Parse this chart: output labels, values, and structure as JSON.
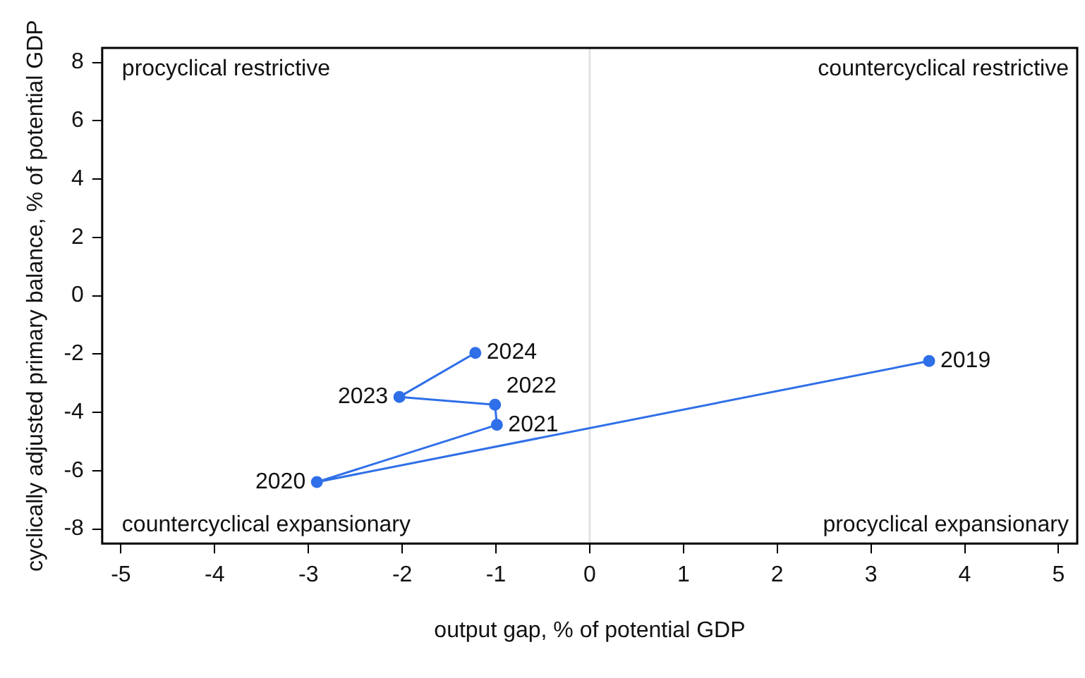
{
  "chart_data": {
    "type": "line",
    "xlabel": "output gap, % of potential GDP",
    "ylabel": "cyclically adjusted primary balance, % of potential GDP",
    "x": [
      3.62,
      -2.91,
      -0.99,
      -1.01,
      -2.03,
      -1.22
    ],
    "series": [
      {
        "color": "#2f6fe8",
        "values": [
          -2.24,
          -6.39,
          -4.43,
          -3.74,
          -3.47,
          -1.96
        ]
      }
    ],
    "xlim": [
      -5.2,
      5.2
    ],
    "xticks": [
      -5,
      -4,
      -3,
      -2,
      -1,
      0,
      1,
      2,
      3,
      4,
      5
    ],
    "ylim": [
      -8.5,
      8.5
    ],
    "yticks": [
      -8,
      -6,
      -4,
      -2,
      0,
      2,
      4,
      6,
      8
    ],
    "ref_lines": [
      {
        "axis": "x",
        "value": 0,
        "color": "#e2e2e2"
      }
    ],
    "annotations": [
      "procyclical restrictive",
      "countercyclical restrictive",
      "countercyclical expansionary",
      "procyclical expansionary",
      {
        "text": "2019",
        "x": 3.62,
        "y": -2.24
      },
      {
        "text": "2020",
        "x": -2.91,
        "y": -6.39
      },
      {
        "text": "2021",
        "x": -0.99,
        "y": -4.43
      },
      {
        "text": "2022",
        "x": -1.01,
        "y": -3.74
      },
      {
        "text": "2023",
        "x": -2.03,
        "y": -3.47
      },
      {
        "text": "2024",
        "x": -1.22,
        "y": -1.96
      }
    ],
    "marker": "circle",
    "line_style": "solid",
    "grid": false,
    "legend": false
  }
}
